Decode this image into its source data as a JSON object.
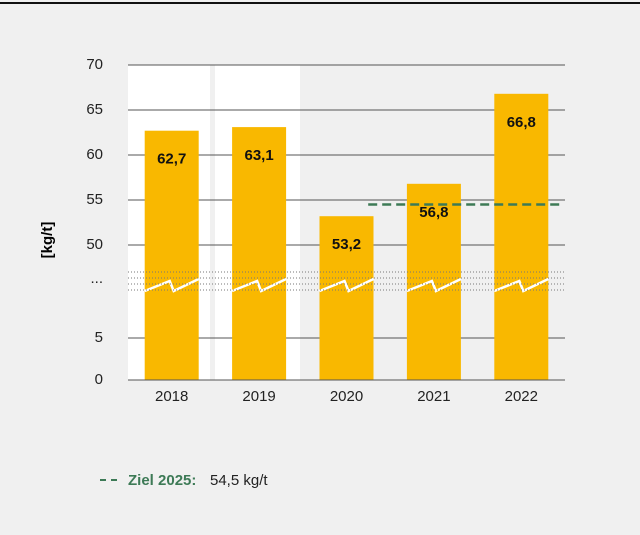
{
  "chart_data": {
    "type": "bar",
    "y_label": "[kg/t]",
    "categories": [
      "2018",
      "2019",
      "2020",
      "2021",
      "2022"
    ],
    "values": [
      62.7,
      63.1,
      53.2,
      56.8,
      66.8
    ],
    "value_labels": [
      "62,7",
      "63,1",
      "53,2",
      "56,8",
      "66,8"
    ],
    "color": "#f9b800",
    "ylim": [
      0,
      70
    ],
    "yticks": [
      0,
      5,
      50,
      55,
      60,
      65,
      70
    ],
    "y_break_label": "...",
    "grid": true,
    "target": {
      "value": 54.5,
      "label": "Ziel 2025:",
      "value_label": "54,5 kg/t",
      "color": "#3d7a56"
    }
  }
}
